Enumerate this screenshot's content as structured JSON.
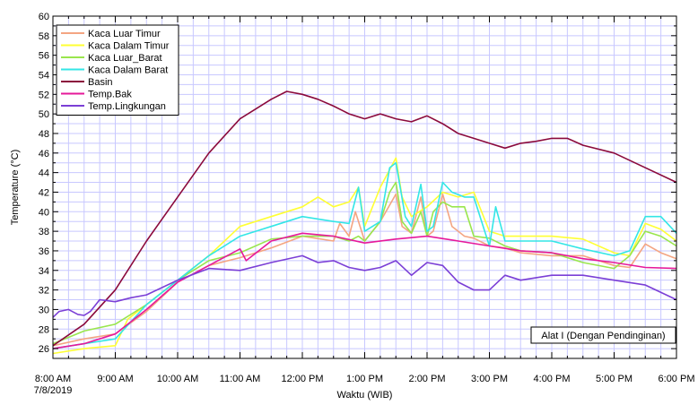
{
  "chart_data": {
    "type": "line",
    "title": "",
    "xlabel": "Waktu (WIB)",
    "ylabel": "Temperature (°C)",
    "x_ticks": [
      "8:00 AM",
      "9:00 AM",
      "10:00 AM",
      "11:00 AM",
      "12:00 PM",
      "1:00 PM",
      "2:00 PM",
      "3:00 PM",
      "4:00 PM",
      "5:00 PM",
      "6:00 PM"
    ],
    "x_subtitle": "7/8/2019",
    "xlim": [
      8,
      18
    ],
    "ylim": [
      25,
      60
    ],
    "y_ticks": [
      26,
      28,
      30,
      32,
      34,
      36,
      38,
      40,
      42,
      44,
      46,
      48,
      50,
      52,
      54,
      56,
      58,
      60
    ],
    "grid": true,
    "legend_position": "top-left",
    "annotation": "Alat I (Dengan Pendinginan)",
    "series": [
      {
        "name": "Kaca Luar Timur",
        "color": "#f4a582",
        "x": [
          8.0,
          8.5,
          9.0,
          9.5,
          10.0,
          10.5,
          11.0,
          11.5,
          12.0,
          12.5,
          12.6,
          12.75,
          12.85,
          13.0,
          13.25,
          13.5,
          13.6,
          13.75,
          13.9,
          14.0,
          14.1,
          14.25,
          14.4,
          14.6,
          14.75,
          15.0,
          15.25,
          15.5,
          16.0,
          16.5,
          17.0,
          17.25,
          17.5,
          17.75,
          18.0
        ],
        "y": [
          26.3,
          27.0,
          27.5,
          29.8,
          32.8,
          34.5,
          35.3,
          36.3,
          37.5,
          37.0,
          38.8,
          37.5,
          40.0,
          37.0,
          39.0,
          41.8,
          38.5,
          37.8,
          41.5,
          37.5,
          38.0,
          41.8,
          38.5,
          37.5,
          37.3,
          36.5,
          36.3,
          35.8,
          35.5,
          35.5,
          34.5,
          34.3,
          36.7,
          35.8,
          35.2
        ]
      },
      {
        "name": "Kaca Dalam Timur",
        "color": "#ffff33",
        "x": [
          8.0,
          8.5,
          9.0,
          9.2,
          9.5,
          10.0,
          10.5,
          11.0,
          11.5,
          12.0,
          12.25,
          12.5,
          12.75,
          12.9,
          13.0,
          13.25,
          13.5,
          13.6,
          13.75,
          14.0,
          14.25,
          14.5,
          14.75,
          15.0,
          15.25,
          15.5,
          16.0,
          16.5,
          17.0,
          17.25,
          17.5,
          17.75,
          18.0
        ],
        "y": [
          25.5,
          26.0,
          26.3,
          29.0,
          30.5,
          33.0,
          35.5,
          38.5,
          39.5,
          40.5,
          41.5,
          40.5,
          41.0,
          42.5,
          38.5,
          42.5,
          45.5,
          41.5,
          39.5,
          40.5,
          42.0,
          41.5,
          42.0,
          38.0,
          37.5,
          37.5,
          37.5,
          37.2,
          35.8,
          35.5,
          38.8,
          38.2,
          37.0
        ]
      },
      {
        "name": "Kaca Luar_Barat",
        "color": "#99e64d",
        "x": [
          8.0,
          8.5,
          9.0,
          9.5,
          10.0,
          10.5,
          11.0,
          11.5,
          12.0,
          12.5,
          12.75,
          12.9,
          13.0,
          13.25,
          13.4,
          13.5,
          13.6,
          13.75,
          13.9,
          14.0,
          14.1,
          14.25,
          14.4,
          14.6,
          14.75,
          15.0,
          15.25,
          15.5,
          16.0,
          16.5,
          17.0,
          17.25,
          17.5,
          17.75,
          18.0
        ],
        "y": [
          26.5,
          27.8,
          28.5,
          30.5,
          33.0,
          35.0,
          35.8,
          37.2,
          37.5,
          37.5,
          37.0,
          37.5,
          37.0,
          39.0,
          42.0,
          43.0,
          39.0,
          37.8,
          40.0,
          37.5,
          40.0,
          41.0,
          40.5,
          40.5,
          37.5,
          37.3,
          36.5,
          36.0,
          35.8,
          34.8,
          34.2,
          35.5,
          38.0,
          37.5,
          36.5
        ]
      },
      {
        "name": "Kaca Dalam Barat",
        "color": "#33e6e6",
        "x": [
          8.0,
          8.5,
          9.0,
          9.5,
          10.0,
          10.5,
          11.0,
          11.5,
          12.0,
          12.5,
          12.75,
          12.9,
          13.0,
          13.25,
          13.4,
          13.5,
          13.65,
          13.75,
          13.9,
          14.0,
          14.1,
          14.25,
          14.4,
          14.6,
          14.75,
          15.0,
          15.1,
          15.25,
          15.5,
          16.0,
          16.5,
          17.0,
          17.25,
          17.5,
          17.75,
          18.0
        ],
        "y": [
          26.0,
          26.5,
          27.0,
          30.5,
          33.0,
          35.5,
          37.5,
          38.5,
          39.5,
          39.0,
          38.8,
          42.5,
          38.0,
          39.0,
          44.5,
          45.0,
          39.5,
          38.5,
          42.8,
          38.0,
          38.5,
          43.0,
          42.0,
          41.5,
          41.5,
          36.5,
          40.5,
          37.0,
          37.0,
          37.0,
          36.2,
          35.5,
          36.0,
          39.5,
          39.5,
          37.8
        ]
      },
      {
        "name": "Basin",
        "color": "#8b0a3c",
        "x": [
          8.0,
          8.5,
          9.0,
          9.5,
          10.0,
          10.5,
          11.0,
          11.5,
          11.75,
          12.0,
          12.25,
          12.5,
          12.75,
          13.0,
          13.25,
          13.5,
          13.75,
          14.0,
          14.25,
          14.5,
          14.75,
          15.0,
          15.25,
          15.5,
          15.75,
          16.0,
          16.25,
          16.5,
          17.0,
          17.5,
          18.0
        ],
        "y": [
          26.3,
          28.5,
          32.0,
          37.0,
          41.5,
          46.0,
          49.5,
          51.5,
          52.3,
          52.0,
          51.5,
          50.8,
          50.0,
          49.5,
          50.0,
          49.5,
          49.2,
          49.8,
          49.0,
          48.0,
          47.5,
          47.0,
          46.5,
          47.0,
          47.2,
          47.5,
          47.5,
          46.8,
          46.0,
          44.5,
          43.0
        ]
      },
      {
        "name": "Temp.Bak",
        "color": "#e6199a",
        "x": [
          8.0,
          8.5,
          9.0,
          9.5,
          10.0,
          10.5,
          11.0,
          11.1,
          11.5,
          12.0,
          12.5,
          13.0,
          13.5,
          14.0,
          14.5,
          15.0,
          15.5,
          16.0,
          16.5,
          17.0,
          17.5,
          18.0
        ],
        "y": [
          26.0,
          26.5,
          27.5,
          30.0,
          32.8,
          34.5,
          36.2,
          35.0,
          37.0,
          37.8,
          37.5,
          36.8,
          37.2,
          37.5,
          37.0,
          36.5,
          36.0,
          35.8,
          35.2,
          34.8,
          34.3,
          34.2
        ]
      },
      {
        "name": "Temp.Lingkungan",
        "color": "#7b3fd6",
        "x": [
          8.0,
          8.1,
          8.25,
          8.4,
          8.5,
          8.6,
          8.75,
          9.0,
          9.25,
          9.5,
          10.0,
          10.5,
          11.0,
          11.5,
          12.0,
          12.25,
          12.5,
          12.75,
          13.0,
          13.25,
          13.5,
          13.75,
          14.0,
          14.25,
          14.5,
          14.75,
          15.0,
          15.25,
          15.5,
          16.0,
          16.5,
          17.0,
          17.5,
          18.0
        ],
        "y": [
          29.2,
          29.8,
          30.0,
          29.5,
          29.4,
          29.8,
          31.0,
          30.8,
          31.2,
          31.5,
          33.0,
          34.2,
          34.0,
          34.8,
          35.5,
          34.8,
          35.0,
          34.3,
          34.0,
          34.3,
          35.0,
          33.5,
          34.8,
          34.5,
          32.8,
          32.0,
          32.0,
          33.5,
          33.0,
          33.5,
          33.5,
          33.0,
          32.5,
          31.0
        ]
      }
    ]
  }
}
